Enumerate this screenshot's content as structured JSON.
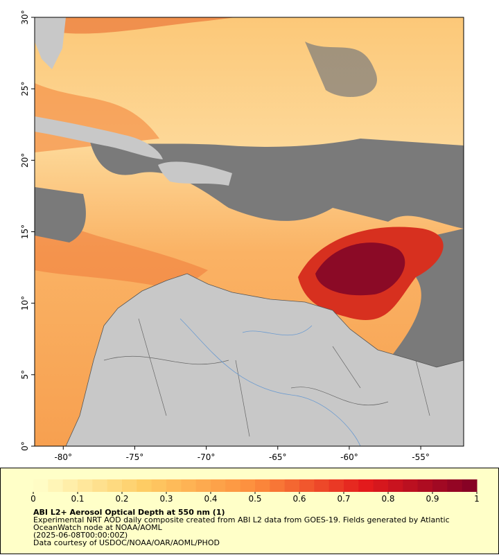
{
  "map": {
    "xlim": [
      -82,
      -52
    ],
    "ylim": [
      0,
      30
    ],
    "xticks": [
      {
        "value": -80,
        "label": "-80°"
      },
      {
        "value": -75,
        "label": "-75°"
      },
      {
        "value": -70,
        "label": "-70°"
      },
      {
        "value": -65,
        "label": "-65°"
      },
      {
        "value": -60,
        "label": "-60°"
      },
      {
        "value": -55,
        "label": "-55°"
      }
    ],
    "yticks": [
      {
        "value": 0,
        "label": "0°"
      },
      {
        "value": 5,
        "label": "5°"
      },
      {
        "value": 10,
        "label": "10°"
      },
      {
        "value": 15,
        "label": "15°"
      },
      {
        "value": 20,
        "label": "20°"
      },
      {
        "value": 25,
        "label": "25°"
      },
      {
        "value": 30,
        "label": "30°"
      }
    ]
  },
  "colorbar": {
    "lim": [
      0,
      1
    ],
    "ticks": [
      0,
      0.1,
      0.2,
      0.3,
      0.4,
      0.5,
      0.6,
      0.7,
      0.8,
      0.9,
      1
    ]
  },
  "caption": {
    "title": "ABI L2+ Aerosol Optical Depth at 550 nm (1)",
    "description": "Experimental NRT AOD daily composite created from ABI L2 data from GOES-19. Fields generated by Atlantic OceanWatch node at NOAA/AOML",
    "timestamp": "(2025-06-08T00:00:00Z)",
    "credit": "Data courtesy of USDOC/NOAA/OAR/AOML/PHOD"
  }
}
